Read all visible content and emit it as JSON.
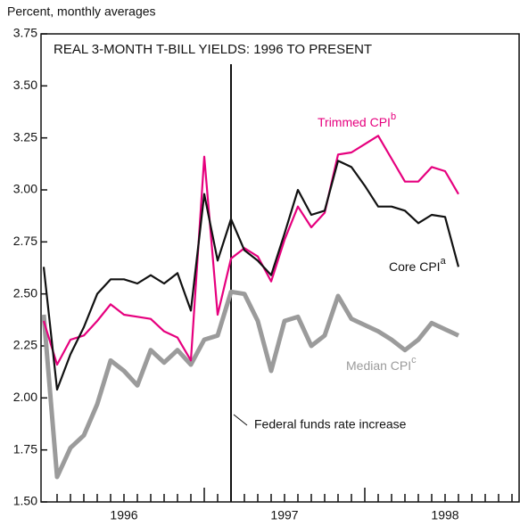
{
  "chart_data": {
    "type": "line",
    "title": "REAL 3-MONTH T-BILL YIELDS: 1996 TO PRESENT",
    "ylabel": "Percent, monthly averages",
    "x": [
      0,
      1,
      2,
      3,
      4,
      5,
      6,
      7,
      8,
      9,
      10,
      11,
      12,
      13,
      14,
      15,
      16,
      17,
      18,
      19,
      20,
      21,
      22,
      23,
      24,
      25,
      26,
      27,
      28,
      29,
      30,
      31
    ],
    "series": [
      {
        "name": "Median CPI",
        "note": "c",
        "color": "#9b9b9b",
        "width": 5,
        "values": [
          2.4,
          1.62,
          1.76,
          1.82,
          1.97,
          2.18,
          2.13,
          2.06,
          2.23,
          2.17,
          2.23,
          2.16,
          2.28,
          2.3,
          2.51,
          2.5,
          2.37,
          2.13,
          2.37,
          2.39,
          2.25,
          2.3,
          2.49,
          2.38,
          2.35,
          2.32,
          2.28,
          2.23,
          2.28,
          2.36,
          2.33,
          2.3
        ]
      },
      {
        "name": "Trimmed CPI",
        "note": "b",
        "color": "#e6007e",
        "width": 2.2,
        "values": [
          2.37,
          2.16,
          2.28,
          2.3,
          2.37,
          2.45,
          2.4,
          2.39,
          2.38,
          2.32,
          2.29,
          2.18,
          3.16,
          2.4,
          2.67,
          2.72,
          2.68,
          2.56,
          2.76,
          2.92,
          2.82,
          2.89,
          3.17,
          3.18,
          3.22,
          3.26,
          3.15,
          3.04,
          3.04,
          3.11,
          3.09,
          2.98
        ]
      },
      {
        "name": "Core CPI",
        "note": "a",
        "color": "#111111",
        "width": 2.2,
        "values": [
          2.63,
          2.04,
          2.21,
          2.34,
          2.5,
          2.57,
          2.57,
          2.55,
          2.59,
          2.55,
          2.6,
          2.42,
          2.98,
          2.66,
          2.86,
          2.71,
          2.66,
          2.59,
          2.79,
          3.0,
          2.88,
          2.9,
          3.14,
          3.11,
          3.02,
          2.92,
          2.92,
          2.9,
          2.84,
          2.88,
          2.87,
          2.63
        ]
      }
    ],
    "xlim": [
      -0.2,
      35.6
    ],
    "xticks": [
      {
        "value": 6,
        "label": "1996"
      },
      {
        "value": 18,
        "label": "1997"
      },
      {
        "value": 30,
        "label": "1998"
      }
    ],
    "x_major_ticks": [
      12,
      24
    ],
    "x_minor_ticks": [
      1,
      2,
      3,
      4,
      5,
      6,
      7,
      8,
      9,
      10,
      11,
      13,
      14,
      15,
      16,
      17,
      18,
      19,
      20,
      21,
      22,
      23,
      25,
      26,
      27,
      28,
      29,
      30,
      31,
      32,
      33,
      34,
      35
    ],
    "ylim": [
      1.5,
      3.75
    ],
    "yticks": [
      {
        "value": 1.5,
        "label": "1.50"
      },
      {
        "value": 1.75,
        "label": "1.75"
      },
      {
        "value": 2.0,
        "label": "2.00"
      },
      {
        "value": 2.25,
        "label": "2.25"
      },
      {
        "value": 2.5,
        "label": "2.50"
      },
      {
        "value": 2.75,
        "label": "2.75"
      },
      {
        "value": 3.0,
        "label": "3.00"
      },
      {
        "value": 3.25,
        "label": "3.25"
      },
      {
        "value": 3.5,
        "label": "3.50"
      },
      {
        "value": 3.75,
        "label": "3.75"
      }
    ],
    "event": {
      "x": 14,
      "label": "Federal funds rate increase"
    }
  }
}
